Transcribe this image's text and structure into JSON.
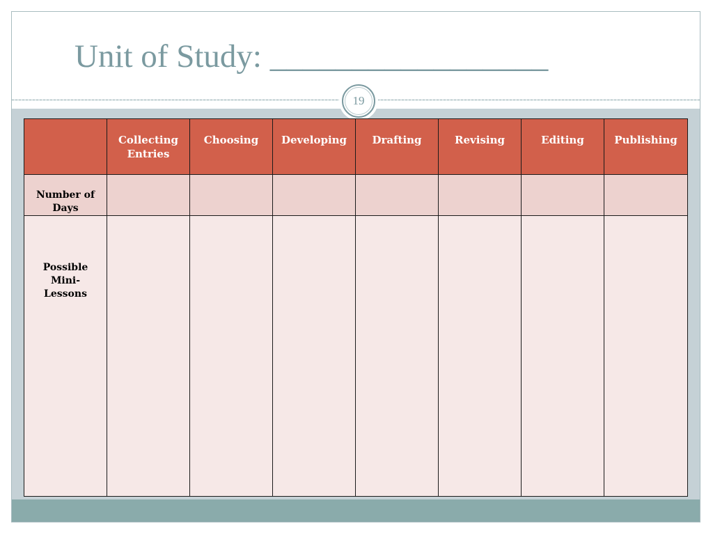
{
  "slide": {
    "title": "Unit of Study: _________________",
    "slide_number": "19"
  },
  "table": {
    "corner": "",
    "columns": [
      "Collecting Entries",
      "Choosing",
      "Developing",
      "Drafting",
      "Revising",
      "Editing",
      "Publishing"
    ],
    "rows": [
      {
        "label": "Number of Days",
        "cells": [
          "",
          "",
          "",
          "",
          "",
          "",
          ""
        ]
      },
      {
        "label": "Possible Mini-Lessons",
        "cells": [
          "",
          "",
          "",
          "",
          "",
          "",
          ""
        ]
      }
    ]
  },
  "colors": {
    "title": "#7b9aa0",
    "header_fill": "#d2604b",
    "days_row_fill": "#edd2cf",
    "lessons_row_fill": "#f6e8e7",
    "background_frame": "#c5d1d6",
    "footer_bar": "#8aabab"
  }
}
